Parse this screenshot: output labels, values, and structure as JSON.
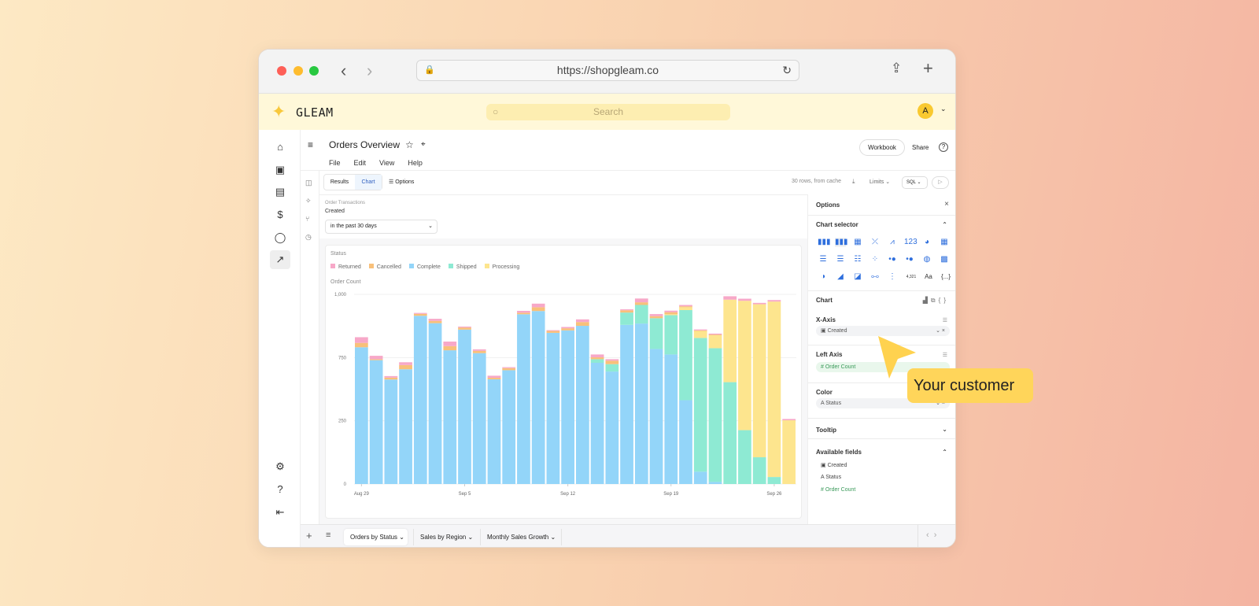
{
  "browser": {
    "url": "https://shopgleam.co"
  },
  "app": {
    "logo": "GLEAM",
    "search_placeholder": "Search",
    "avatar": "A"
  },
  "page": {
    "title": "Orders Overview",
    "menu": [
      "File",
      "Edit",
      "View",
      "Help"
    ],
    "workbook": "Workbook",
    "share": "Share"
  },
  "toolbar": {
    "tabs": [
      "Results",
      "Chart"
    ],
    "options": "Options",
    "rows": "30 rows, from cache",
    "limits": "Limits",
    "sql": "SQL"
  },
  "filter": {
    "source": "Order Transactions",
    "label": "Created",
    "value": "in the past 30 days"
  },
  "colors": {
    "Returned": "#f7a8c8",
    "Cancelled": "#f8c07a",
    "Complete": "#93d5f9",
    "Shipped": "#8eead3",
    "Processing": "#fde58e",
    "accent": "#ffd55a"
  },
  "chart_data": {
    "type": "bar",
    "stacked": true,
    "legend_title": "Status",
    "ylabel": "Order Count",
    "xlabel": "",
    "ylim": [
      0,
      1000
    ],
    "ytick_labels": [
      "0",
      "250",
      "750",
      "1,000"
    ],
    "xtick_labels": [
      "Aug 29",
      "Sep 5",
      "Sep 12",
      "Sep 19",
      "Sep 26"
    ],
    "legend_placement": "top-left",
    "grid": true,
    "categories": [
      "Aug 29",
      "Aug 30",
      "Aug 31",
      "Sep 1",
      "Sep 2",
      "Sep 3",
      "Sep 4",
      "Sep 5",
      "Sep 6",
      "Sep 7",
      "Sep 8",
      "Sep 9",
      "Sep 10",
      "Sep 11",
      "Sep 12",
      "Sep 13",
      "Sep 14",
      "Sep 15",
      "Sep 16",
      "Sep 17",
      "Sep 18",
      "Sep 19",
      "Sep 20",
      "Sep 21",
      "Sep 22",
      "Sep 23",
      "Sep 24",
      "Sep 25",
      "Sep 26",
      "Sep 27"
    ],
    "series": [
      {
        "name": "Complete",
        "values": [
          721,
          653,
          551,
          605,
          887,
          848,
          705,
          814,
          690,
          552,
          600,
          895,
          912,
          797,
          810,
          834,
          639,
          593,
          839,
          846,
          712,
          683,
          442,
          65,
          11,
          0,
          0,
          0,
          0,
          0
        ]
      },
      {
        "name": "Shipped",
        "values": [
          0,
          0,
          0,
          0,
          0,
          0,
          0,
          0,
          0,
          0,
          0,
          0,
          0,
          0,
          0,
          0,
          19,
          39,
          65,
          98,
          162,
          207,
          475,
          705,
          705,
          537,
          284,
          141,
          37,
          0
        ]
      },
      {
        "name": "Processing",
        "values": [
          0,
          0,
          0,
          0,
          0,
          0,
          0,
          0,
          0,
          0,
          0,
          0,
          0,
          0,
          0,
          0,
          0,
          0,
          0,
          0,
          0,
          5,
          15,
          37,
          68,
          435,
          682,
          807,
          925,
          336
        ]
      },
      {
        "name": "Cancelled",
        "values": [
          23,
          5,
          10,
          22,
          10,
          12,
          22,
          11,
          12,
          8,
          11,
          8,
          20,
          10,
          11,
          20,
          10,
          18,
          12,
          14,
          11,
          11,
          5,
          3,
          4,
          0,
          0,
          0,
          0,
          0
        ]
      },
      {
        "name": "Returned",
        "values": [
          30,
          18,
          8,
          15,
          5,
          11,
          24,
          5,
          8,
          11,
          5,
          10,
          19,
          4,
          7,
          14,
          15,
          8,
          5,
          20,
          11,
          8,
          7,
          5,
          5,
          18,
          11,
          7,
          8,
          7
        ]
      }
    ],
    "legend_order": [
      "Returned",
      "Cancelled",
      "Complete",
      "Shipped",
      "Processing"
    ]
  },
  "options": {
    "title": "Options",
    "chart_selector": "Chart selector",
    "chart": "Chart",
    "xaxis": "X-Axis",
    "xaxis_field": "Created",
    "left_axis": "Left Axis",
    "left_field": "Order Count",
    "color": "Color",
    "color_field": "Status",
    "tooltip": "Tooltip",
    "available": "Available fields",
    "fields": [
      "Created",
      "Status",
      "Order Count"
    ],
    "big_number": "4,321",
    "text_chart": "Aa",
    "custom": "{...}"
  },
  "bottom_tabs": [
    "Orders by Status",
    "Sales by Region",
    "Monthly Sales Growth"
  ],
  "cursor": {
    "label": "Your customer"
  }
}
